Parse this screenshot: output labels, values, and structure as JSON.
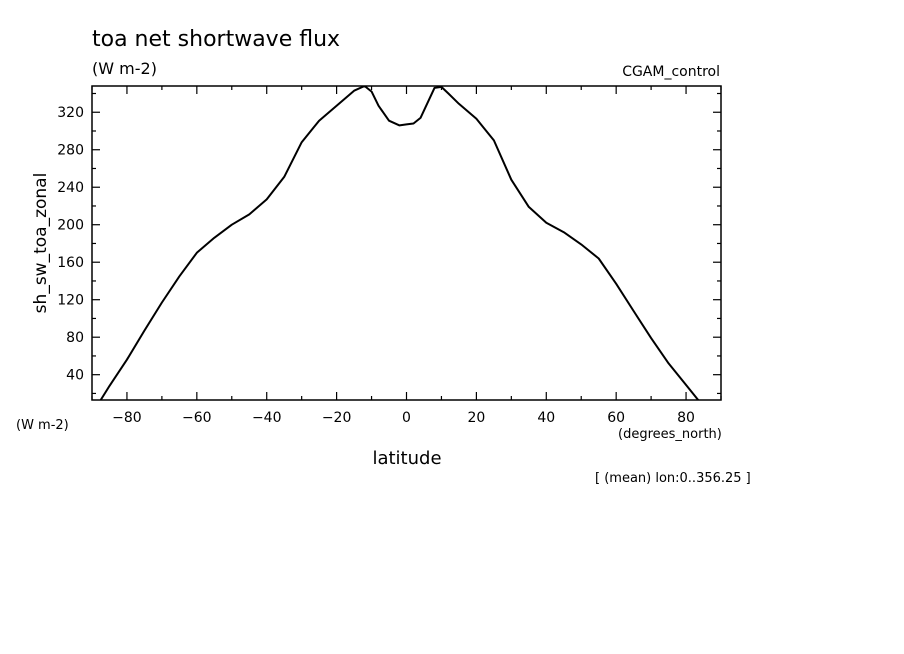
{
  "chart_data": {
    "type": "line",
    "title": "toa net shortwave flux",
    "subtitle": "(W m-2)",
    "run_label": "CGAM_control",
    "ylabel": "sh_sw_toa_zonal",
    "y_units": "(W m-2)",
    "xlabel": "latitude",
    "x_units": "(degrees_north)",
    "footnote": "[ (mean) lon:0..356.25 ]",
    "xlim": [
      -90,
      90
    ],
    "ylim": [
      13,
      348
    ],
    "xticks": [
      -80,
      -60,
      -40,
      -20,
      0,
      20,
      40,
      60,
      80
    ],
    "yticks": [
      40,
      80,
      120,
      160,
      200,
      240,
      280,
      320
    ],
    "grid": false,
    "series": [
      {
        "color": "#000000",
        "x": [
          -87.5,
          -85,
          -80,
          -75,
          -70,
          -65,
          -60,
          -55,
          -50,
          -45,
          -40,
          -35,
          -30,
          -25,
          -20,
          -15,
          -12,
          -10,
          -8,
          -5,
          -2,
          0,
          2,
          4,
          6,
          8,
          10,
          12,
          15,
          20,
          25,
          30,
          35,
          40,
          45,
          50,
          55,
          60,
          65,
          70,
          75,
          80,
          85,
          87.5
        ],
        "y": [
          13,
          28,
          56,
          87,
          117,
          145,
          170,
          186,
          200,
          211,
          227,
          251,
          288,
          311,
          327,
          343,
          348,
          342,
          327,
          311,
          306,
          307,
          308,
          314,
          330,
          346,
          347,
          340,
          329,
          313,
          290,
          248,
          219,
          202,
          192,
          179,
          164,
          137,
          108,
          79,
          52,
          29,
          6,
          0
        ]
      }
    ]
  }
}
